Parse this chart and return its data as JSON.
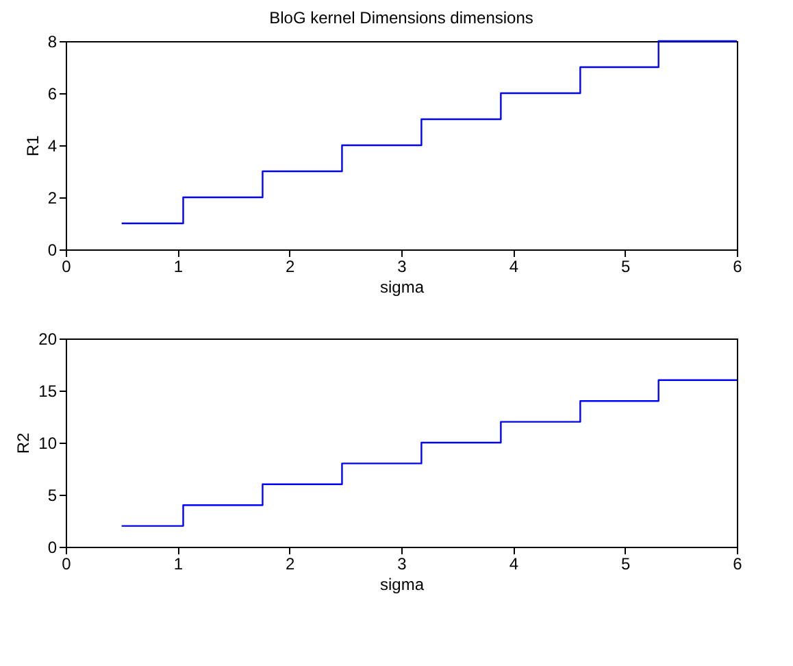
{
  "chart_data": [
    {
      "type": "step",
      "title": "BloG kernel Dimensions dimensions",
      "xlabel": "sigma",
      "ylabel": "R1",
      "x": [
        0.5,
        1.05,
        1.76,
        2.47,
        3.18,
        3.89,
        4.6,
        5.3,
        6
      ],
      "series": [
        {
          "color": "#0000ff",
          "values": [
            1,
            2,
            3,
            4,
            5,
            6,
            7,
            8,
            8
          ]
        }
      ],
      "xlim": [
        0,
        6
      ],
      "xticks": [
        0,
        1,
        2,
        3,
        4,
        5,
        6
      ],
      "ylim": [
        0,
        8
      ],
      "yticks": [
        0,
        2,
        4,
        6,
        8
      ]
    },
    {
      "type": "step",
      "xlabel": "sigma",
      "ylabel": "R2",
      "x": [
        0.5,
        1.05,
        1.76,
        2.47,
        3.18,
        3.89,
        4.6,
        5.3,
        6
      ],
      "series": [
        {
          "color": "#0000ff",
          "values": [
            2,
            4,
            6,
            8,
            10,
            12,
            14,
            16,
            16
          ]
        }
      ],
      "xlim": [
        0,
        6
      ],
      "xticks": [
        0,
        1,
        2,
        3,
        4,
        5,
        6
      ],
      "ylim": [
        0,
        20
      ],
      "yticks": [
        0,
        5,
        10,
        15,
        20
      ]
    }
  ]
}
